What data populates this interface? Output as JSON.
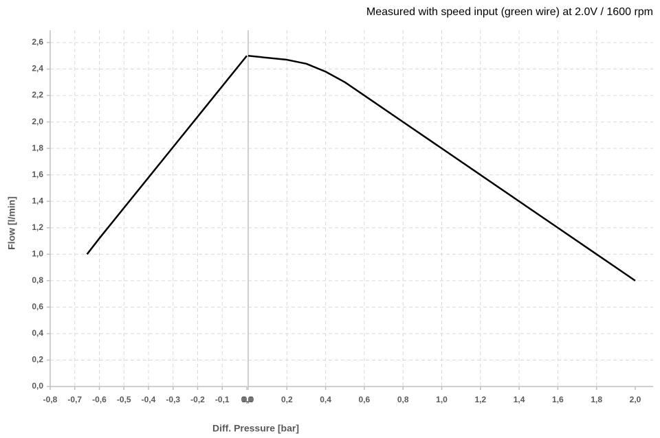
{
  "chart_data": [
    {
      "type": "line",
      "title": "Measured with speed input (green wire) at 2.0V / 1600 rpm",
      "x_label": "Diff. Pressure [bar]",
      "y_label": "Flow [l/min]",
      "x": [
        -0.65,
        -0.6,
        -0.5,
        -0.4,
        -0.3,
        -0.2,
        -0.1,
        0.0
      ],
      "values": [
        1.0,
        1.12,
        1.35,
        1.58,
        1.81,
        2.04,
        2.27,
        2.5
      ],
      "color": "#000000",
      "grid": true,
      "xlim": [
        -0.8,
        0.0
      ],
      "xticks": [
        {
          "value": -0.8,
          "label": "-0,8"
        },
        {
          "value": -0.7,
          "label": "-0,7"
        },
        {
          "value": -0.6,
          "label": "-0,6"
        },
        {
          "value": -0.5,
          "label": "-0,5"
        },
        {
          "value": -0.4,
          "label": "-0,4"
        },
        {
          "value": -0.3,
          "label": "-0,3"
        },
        {
          "value": -0.2,
          "label": "-0,2"
        },
        {
          "value": -0.1,
          "label": "-0,1"
        },
        {
          "value": 0.0,
          "label": "0,0"
        }
      ],
      "ylim": [
        0,
        2.6
      ],
      "yticks": [
        {
          "value": 0,
          "label": "0,0"
        },
        {
          "value": 0.2,
          "label": "0,2"
        },
        {
          "value": 0.4,
          "label": "0,4"
        },
        {
          "value": 0.6,
          "label": "0,6"
        },
        {
          "value": 0.8,
          "label": "0,8"
        },
        {
          "value": 1.0,
          "label": "1,0"
        },
        {
          "value": 1.2,
          "label": "1,2"
        },
        {
          "value": 1.4,
          "label": "1,4"
        },
        {
          "value": 1.6,
          "label": "1,6"
        },
        {
          "value": 1.8,
          "label": "1,8"
        },
        {
          "value": 2.0,
          "label": "2,0"
        },
        {
          "value": 2.2,
          "label": "2,2"
        },
        {
          "value": 2.4,
          "label": "2,4"
        },
        {
          "value": 2.6,
          "label": "2,6"
        }
      ]
    },
    {
      "type": "line",
      "x": [
        0.0,
        0.2,
        0.3,
        0.4,
        0.5,
        0.6,
        0.8,
        1.0,
        1.2,
        1.4,
        1.6,
        1.8,
        2.0
      ],
      "values": [
        2.5,
        2.47,
        2.44,
        2.38,
        2.3,
        2.2,
        2.0,
        1.8,
        1.6,
        1.4,
        1.2,
        1.0,
        0.8
      ],
      "color": "#000000",
      "grid": true,
      "xlim": [
        0.0,
        2.0
      ],
      "xticks": [
        {
          "value": 0.0,
          "label": "0,0"
        },
        {
          "value": 0.2,
          "label": "0,2"
        },
        {
          "value": 0.4,
          "label": "0,4"
        },
        {
          "value": 0.6,
          "label": "0,6"
        },
        {
          "value": 0.8,
          "label": "0,8"
        },
        {
          "value": 1.0,
          "label": "1,0"
        },
        {
          "value": 1.2,
          "label": "1,2"
        },
        {
          "value": 1.4,
          "label": "1,4"
        },
        {
          "value": 1.6,
          "label": "1,6"
        },
        {
          "value": 1.8,
          "label": "1,8"
        },
        {
          "value": 2.0,
          "label": "2,0"
        }
      ],
      "ylim": [
        0,
        2.6
      ]
    }
  ]
}
